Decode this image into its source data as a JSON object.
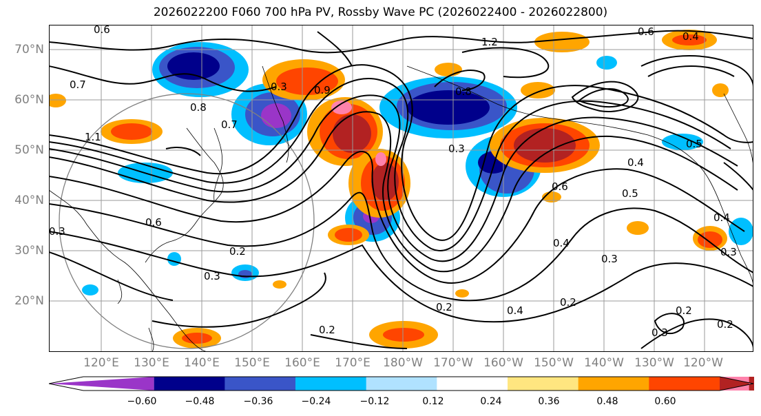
{
  "title": "2026022200 F060 700 hPa PV, Rossby Wave PC (2026022400 - 2026022800)",
  "latitude_labels": [
    "70°N",
    "60°N",
    "50°N",
    "40°N",
    "30°N",
    "20°N"
  ],
  "longitude_labels": [
    "120°E",
    "130°E",
    "140°E",
    "150°E",
    "160°E",
    "170°E",
    "180°W",
    "170°W",
    "160°W",
    "150°W",
    "140°W",
    "130°W",
    "120°W"
  ],
  "colorbar": {
    "ticks": [
      "−0.60",
      "−0.48",
      "−0.36",
      "−0.24",
      "−0.12",
      "0.12",
      "0.24",
      "0.36",
      "0.48",
      "0.60"
    ],
    "colors": [
      "#9a35c8",
      "#00008b",
      "#3a55c8",
      "#00bfff",
      "#b0e2ff",
      "#ffffff",
      "#ffe680",
      "#ffa500",
      "#ff4500",
      "#b22222",
      "#ff82ab"
    ]
  },
  "contour_labels": [
    "0.6",
    "0.7",
    "0.8",
    "1.2",
    "0.6",
    "0.4",
    "0.9",
    "1.1",
    "0.2",
    "0.2",
    "0.2",
    "0.2",
    "0.3",
    "0.3",
    "0.4",
    "0.4",
    "0.5",
    "0.6",
    "0.7",
    "0.3",
    "0.6",
    "0.2",
    "0.3",
    "0.5",
    "0.4",
    "0.3",
    "0.8",
    "0.3",
    "0.4",
    "0.3",
    "0.2"
  ]
}
